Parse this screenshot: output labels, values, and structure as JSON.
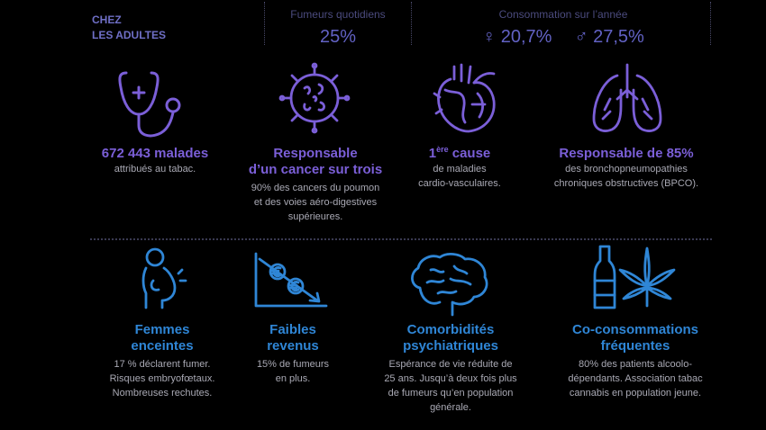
{
  "header": {
    "label_line1": "CHEZ",
    "label_line2": "LES ADULTES",
    "daily_smokers": {
      "caption": "Fumeurs quotidiens",
      "value": "25%"
    },
    "yearly_consumption": {
      "caption": "Consommation sur l’année",
      "female_symbol": "♀",
      "female_value": "20,7%",
      "male_symbol": "♂",
      "male_value": "27,5%"
    }
  },
  "health": [
    {
      "icon": "stethoscope-icon",
      "title": [
        "672 443 malades"
      ],
      "desc": [
        "attribués au tabac."
      ]
    },
    {
      "icon": "cancer-cell-icon",
      "title": [
        "Responsable",
        "d’un cancer sur trois"
      ],
      "desc": [
        "90% des cancers du poumon",
        "et des voies aéro-digestives",
        "supérieures."
      ]
    },
    {
      "icon": "heart-icon",
      "title_num": "1",
      "title_sup": "ère",
      "title_rest": " cause",
      "desc": [
        "de maladies",
        "cardio-vasculaires."
      ]
    },
    {
      "icon": "lungs-icon",
      "title": [
        "Responsable de 85%"
      ],
      "desc": [
        "des bronchopneumopathies",
        "chroniques obstructives (BPCO)."
      ]
    }
  ],
  "social": [
    {
      "icon": "pregnant-woman-icon",
      "title": [
        "Femmes",
        "enceintes"
      ],
      "desc": [
        "17 % déclarent fumer.",
        "Risques embryofœtaux.",
        "Nombreuses rechutes."
      ]
    },
    {
      "icon": "euro-decline-icon",
      "title": [
        "Faibles",
        "revenus"
      ],
      "desc": [
        "15% de fumeurs",
        "en plus."
      ]
    },
    {
      "icon": "brain-icon",
      "title": [
        "Comorbidités",
        "psychiatriques"
      ],
      "desc": [
        "Espérance de vie réduite de",
        "25 ans. Jusqu’à deux fois plus",
        "de fumeurs qu’en population",
        "générale."
      ]
    },
    {
      "icon": "bottle-cannabis-icon",
      "title": [
        "Co-consommations",
        "fréquentes"
      ],
      "desc": [
        "80% des patients alcoolo-",
        "dépendants. Association tabac",
        "cannabis en population jeune."
      ]
    }
  ],
  "colors": {
    "background": "#000000",
    "purple": "#7b5fd8",
    "blue": "#2f86d6",
    "grey_text": "#a9a9b4",
    "header_purple": "#6262c4"
  }
}
